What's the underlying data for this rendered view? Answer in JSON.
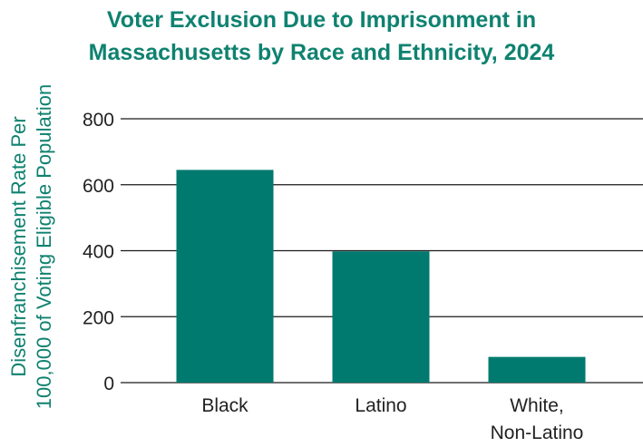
{
  "chart_data": {
    "type": "bar",
    "title_lines": [
      "Voter Exclusion Due to Imprisonment in",
      "Massachusetts by Race and Ethnicity, 2024"
    ],
    "ylabel_lines": [
      "Disenfranchisement Rate Per",
      "100,000 of Voting Eligible Population"
    ],
    "categories": [
      [
        "Black"
      ],
      [
        "Latino"
      ],
      [
        "White,",
        "Non-Latino"
      ]
    ],
    "values": [
      645,
      398,
      78
    ],
    "yticks": [
      0,
      200,
      400,
      600,
      800
    ],
    "ylim": [
      0,
      800
    ],
    "grid": true,
    "bar_color": "#007a6e",
    "title_color": "#0f8270"
  }
}
